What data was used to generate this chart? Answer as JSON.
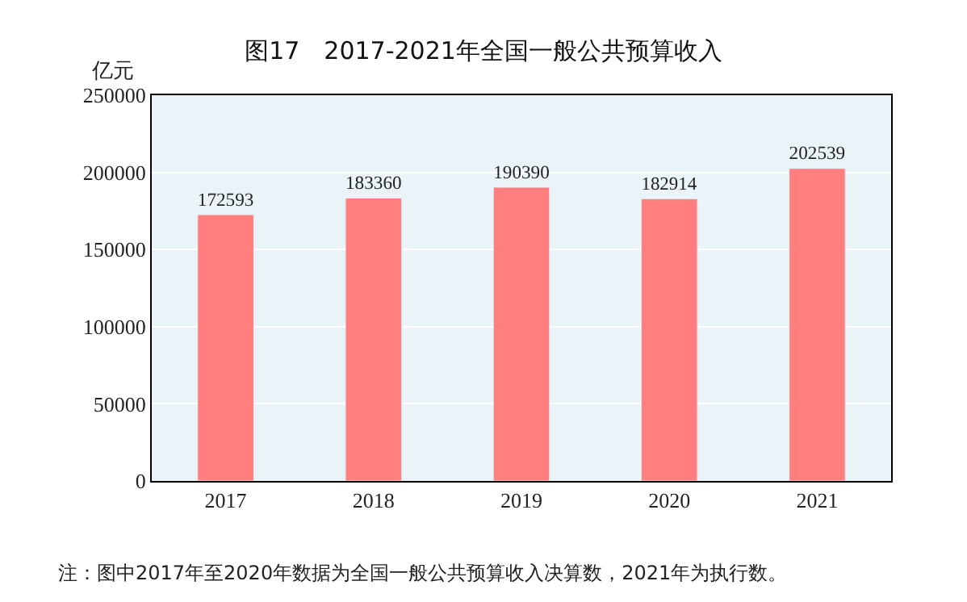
{
  "chart_data": {
    "type": "bar",
    "title": "图17　2017-2021年全国一般公共预算收入",
    "ylabel": "亿元",
    "categories": [
      "2017",
      "2018",
      "2019",
      "2020",
      "2021"
    ],
    "series": [
      {
        "color": "#ff7f7f",
        "values": [
          172593,
          183360,
          190390,
          182914,
          202539
        ]
      }
    ],
    "ylim": [
      0,
      250000
    ],
    "yticks": [
      0,
      50000,
      100000,
      150000,
      200000,
      250000
    ],
    "grid": "y",
    "data_labels": true,
    "legend": false,
    "annotations": [
      "注：图中2017年至2020年数据为全国一般公共预算收入决算数，2021年为执行数。"
    ]
  }
}
